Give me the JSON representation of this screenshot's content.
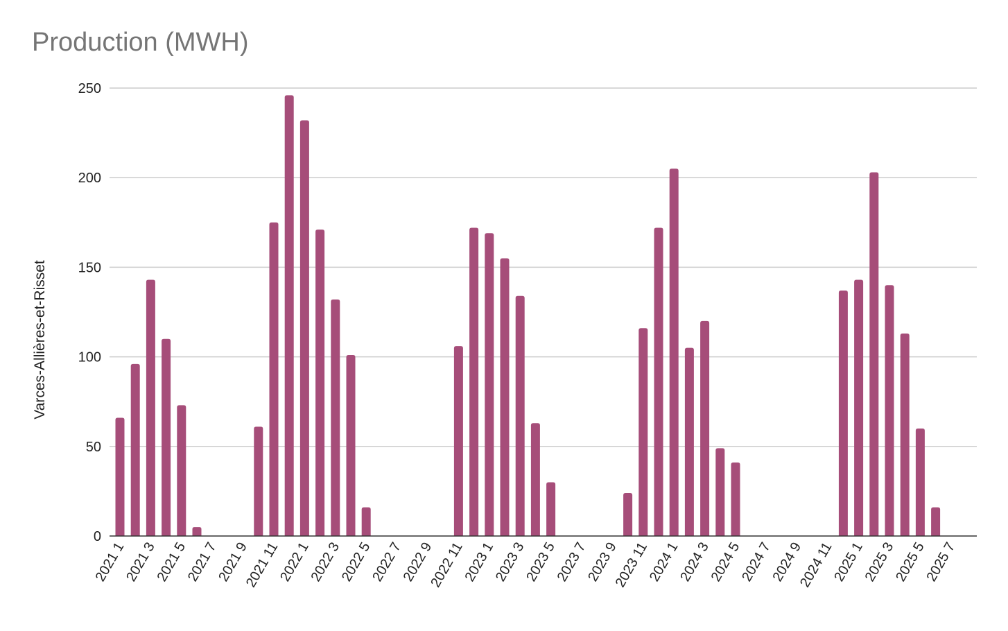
{
  "chart_data": {
    "type": "bar",
    "title": "Production (MWH)",
    "xlabel": "",
    "ylabel": "Varces-Allières-et-Risset",
    "ylim": [
      0,
      250
    ],
    "yticks": [
      0,
      50,
      100,
      150,
      200,
      250
    ],
    "grid": true,
    "color": "#a64d79",
    "categories": [
      "2021 1",
      "2021 2",
      "2021 3",
      "2021 4",
      "2021 5",
      "2021 6",
      "2021 7",
      "2021 8",
      "2021 9",
      "2021 10",
      "2021 11",
      "2021 12",
      "2022 1",
      "2022 2",
      "2022 3",
      "2022 4",
      "2022 5",
      "2022 6",
      "2022 7",
      "2022 8",
      "2022 9",
      "2022 10",
      "2022 11",
      "2022 12",
      "2023 1",
      "2023 2",
      "2023 3",
      "2023 4",
      "2023 5",
      "2023 6",
      "2023 7",
      "2023 8",
      "2023 9",
      "2023 10",
      "2023 11",
      "2023 12",
      "2024 1",
      "2024 2",
      "2024 3",
      "2024 4",
      "2024 5",
      "2024 6",
      "2024 7",
      "2024 8",
      "2024 9",
      "2024 10",
      "2024 11",
      "2024 12",
      "2025 1",
      "2025 2",
      "2025 3",
      "2025 4",
      "2025 5",
      "2025 6",
      "2025 7",
      "2025 8"
    ],
    "values": [
      66,
      96,
      143,
      110,
      73,
      5,
      0,
      0,
      0,
      61,
      175,
      246,
      232,
      171,
      132,
      101,
      16,
      0,
      0,
      0,
      0,
      0,
      106,
      172,
      169,
      155,
      134,
      63,
      30,
      0,
      0,
      0,
      0,
      24,
      116,
      172,
      205,
      105,
      120,
      49,
      41,
      0,
      0,
      0,
      0,
      0,
      0,
      137,
      143,
      203,
      140,
      113,
      60,
      16,
      0,
      0
    ]
  }
}
